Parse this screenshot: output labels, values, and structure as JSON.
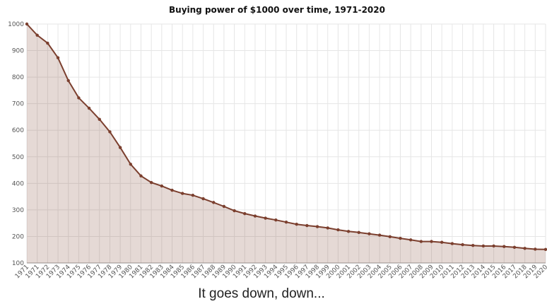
{
  "chart_data": {
    "type": "area",
    "title": "Buying power of $1000 over time, 1971-2020",
    "annotation": "It goes down, down...",
    "categories": [
      "1971",
      "1971",
      "1972",
      "1973",
      "1974",
      "1975",
      "1976",
      "1977",
      "1978",
      "1979",
      "1980",
      "1981",
      "1982",
      "1983",
      "1984",
      "1985",
      "1986",
      "1987",
      "1988",
      "1989",
      "1990",
      "1991",
      "1992",
      "1993",
      "1994",
      "1995",
      "1996",
      "1997",
      "1998",
      "1999",
      "2000",
      "2001",
      "2002",
      "2003",
      "2004",
      "2005",
      "2006",
      "2007",
      "2008",
      "2009",
      "2010",
      "2011",
      "2012",
      "2013",
      "2014",
      "2015",
      "2016",
      "2017",
      "2018",
      "2019",
      "2020"
    ],
    "values": [
      1000,
      958,
      928,
      873,
      787,
      722,
      683,
      641,
      594,
      535,
      472,
      428,
      403,
      390,
      374,
      362,
      355,
      342,
      328,
      313,
      297,
      286,
      277,
      269,
      262,
      254,
      246,
      241,
      237,
      232,
      225,
      219,
      215,
      210,
      205,
      199,
      193,
      187,
      181,
      181,
      178,
      173,
      169,
      166,
      164,
      164,
      162,
      159,
      155,
      152,
      151
    ],
    "color": "#7b3f2e",
    "ylim": [
      100,
      1000
    ],
    "yticks": [
      100,
      200,
      300,
      400,
      500,
      600,
      700,
      800,
      900,
      1000
    ],
    "grid": true
  }
}
